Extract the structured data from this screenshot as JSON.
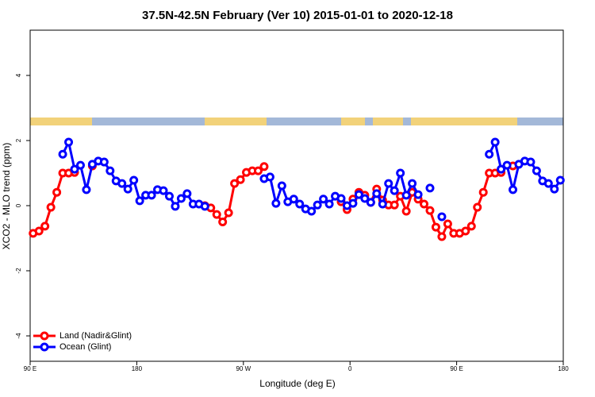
{
  "chart_data": {
    "type": "line",
    "title": "37.5N-42.5N February (Ver 10)   2015-01-01 to 2020-12-18",
    "x_label": "Longitude (deg E)",
    "y_label": "XCO2 - MLO trend (ppm)",
    "x": [
      92.5,
      97.5,
      102.5,
      107.5,
      112.5,
      117.5,
      122.5,
      127.5,
      132.5,
      137.5,
      142.5,
      147.5,
      152.5,
      157.5,
      162.5,
      167.5,
      172.5,
      177.5,
      182.5,
      187.5,
      192.5,
      197.5,
      202.5,
      207.5,
      212.5,
      217.5,
      222.5,
      227.5,
      232.5,
      237.5,
      242.5,
      247.5,
      252.5,
      257.5,
      262.5,
      267.5,
      272.5,
      277.5,
      282.5,
      287.5,
      292.5,
      297.5,
      302.5,
      307.5,
      312.5,
      317.5,
      322.5,
      327.5,
      332.5,
      337.5,
      342.5,
      347.5,
      352.5,
      357.5,
      362.5,
      367.5,
      372.5,
      377.5,
      382.5,
      387.5,
      392.5,
      397.5,
      402.5,
      407.5,
      412.5,
      417.5,
      422.5,
      427.5,
      432.5,
      437.5,
      442.5,
      447.5,
      452.5,
      457.5,
      462.5,
      467.5,
      472.5,
      477.5,
      482.5,
      487.5,
      492.5,
      497.5,
      502.5,
      507.5,
      512.5,
      517.5,
      522.5,
      527.5,
      532.5,
      537.5
    ],
    "series": [
      {
        "name": "Land (Nadir&Glint)",
        "color": "#ff0000",
        "values": [
          -0.85,
          -0.78,
          -0.63,
          -0.05,
          0.41,
          1.0,
          1.0,
          1.02,
          null,
          null,
          1.22,
          null,
          null,
          null,
          null,
          null,
          null,
          null,
          null,
          null,
          null,
          null,
          null,
          null,
          null,
          null,
          null,
          null,
          null,
          0.0,
          -0.07,
          -0.27,
          -0.5,
          -0.22,
          0.68,
          0.8,
          1.02,
          1.07,
          1.07,
          1.2,
          null,
          null,
          null,
          null,
          null,
          null,
          null,
          null,
          null,
          null,
          null,
          null,
          0.12,
          -0.12,
          0.2,
          0.41,
          0.32,
          0.1,
          0.51,
          0.17,
          0.02,
          0.02,
          0.29,
          -0.17,
          0.41,
          0.2,
          0.05,
          -0.15,
          -0.66,
          -0.95,
          -0.56,
          -0.85,
          -0.85,
          -0.78,
          -0.63,
          -0.05,
          0.41,
          1.0,
          1.0,
          1.02,
          null,
          1.22,
          null,
          null,
          null,
          null,
          null,
          null,
          null,
          null
        ]
      },
      {
        "name": "Ocean (Glint)",
        "color": "#0000ff",
        "values": [
          null,
          null,
          null,
          null,
          null,
          1.58,
          1.95,
          1.12,
          1.24,
          0.49,
          1.27,
          1.37,
          1.34,
          1.07,
          0.76,
          0.68,
          0.51,
          0.78,
          0.15,
          0.32,
          0.32,
          0.49,
          0.46,
          0.29,
          -0.02,
          0.22,
          0.37,
          0.05,
          0.05,
          -0.02,
          null,
          null,
          null,
          null,
          null,
          null,
          null,
          null,
          null,
          0.83,
          0.88,
          0.07,
          0.61,
          0.12,
          0.2,
          0.05,
          -0.1,
          -0.17,
          0.02,
          0.2,
          0.05,
          0.29,
          0.22,
          0,
          0.07,
          0.34,
          0.22,
          0.1,
          0.37,
          0.05,
          0.68,
          0.46,
          1.0,
          0.32,
          0.68,
          0.34,
          null,
          0.54,
          null,
          -0.34,
          null,
          null,
          null,
          null,
          null,
          null,
          null,
          1.58,
          1.95,
          1.12,
          1.24,
          0.49,
          1.27,
          1.37,
          1.34,
          1.07,
          0.76,
          0.68,
          0.51,
          0.78
        ]
      }
    ],
    "xlim": [
      90,
      540
    ],
    "xticks": [
      {
        "value": 90,
        "label": "90 E"
      },
      {
        "value": 180,
        "label": "180"
      },
      {
        "value": 270,
        "label": "90 W"
      },
      {
        "value": 360,
        "label": "0"
      },
      {
        "value": 450,
        "label": "90 E"
      },
      {
        "value": 540,
        "label": "180"
      }
    ],
    "ylim": [
      -4.78,
      5.39
    ],
    "yticks": [
      -4,
      -2,
      0,
      2,
      4
    ],
    "legend": "bottom-left"
  }
}
